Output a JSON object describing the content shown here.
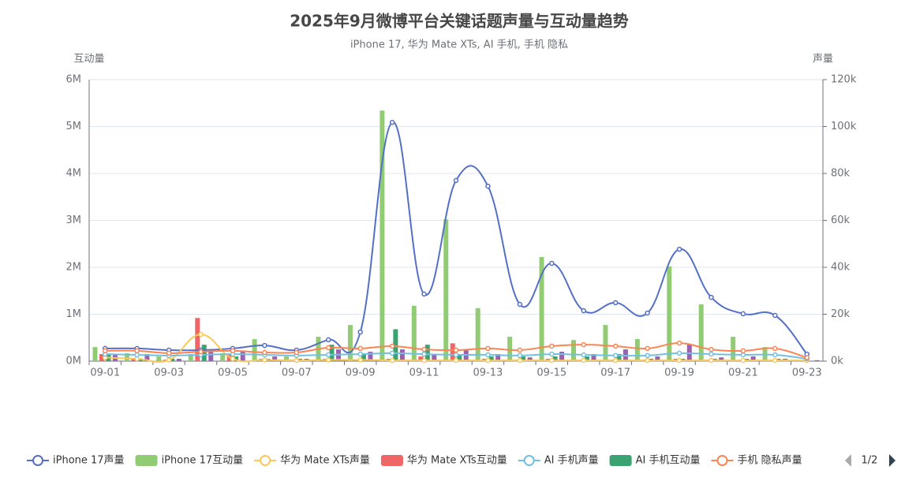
{
  "chart_data": {
    "type": "bar",
    "title": "2025年9月微博平台关键话题声量与互动量趋势",
    "subtitle": "iPhone 17, 华为 Mate XTs, AI 手机, 手机 隐私",
    "y_label": "互动量",
    "y2_label": "声量",
    "categories": [
      "09-01",
      null,
      "09-03",
      null,
      "09-05",
      null,
      "09-07",
      null,
      "09-09",
      null,
      "09-11",
      null,
      "09-13",
      null,
      "09-15",
      null,
      "09-17",
      null,
      "09-19",
      null,
      "09-21",
      null,
      "09-23"
    ],
    "ylim": [
      0,
      6000000
    ],
    "yticks": [
      0,
      {
        "value": 1000000,
        "label": "1M"
      },
      {
        "value": 2000000,
        "label": "2M"
      },
      {
        "value": 3000000,
        "label": "3M"
      },
      {
        "value": 4000000,
        "label": "4M"
      },
      {
        "value": 5000000,
        "label": "5M"
      },
      {
        "value": 6000000,
        "label": "6M"
      }
    ],
    "y0_label": "0M",
    "y2lim": [
      0,
      120000
    ],
    "y2ticks": [
      0,
      {
        "value": 20000,
        "label": "20k"
      },
      {
        "value": 40000,
        "label": "40k"
      },
      {
        "value": 60000,
        "label": "60k"
      },
      {
        "value": 80000,
        "label": "80k"
      },
      {
        "value": 100000,
        "label": "100k"
      },
      {
        "value": 120000,
        "label": "120k"
      }
    ],
    "y20_label": "0k",
    "grid": true,
    "legend_page": "1/2",
    "series": [
      {
        "name": "iPhone 17声量",
        "type": "line",
        "axis": "y2",
        "color": "#5470c6",
        "values": [
          5400,
          5400,
          4700,
          4700,
          5400,
          6700,
          4700,
          9100,
          12400,
          101800,
          28600,
          77000,
          74600,
          24200,
          41700,
          21500,
          24900,
          20500,
          47700,
          27200,
          20200,
          19500,
          3000
        ]
      },
      {
        "name": "iPhone 17互动量",
        "type": "bar",
        "color": "#91cc75",
        "values": [
          300000,
          170000,
          100000,
          150000,
          170000,
          470000,
          100000,
          520000,
          770000,
          5340000,
          1180000,
          3020000,
          1130000,
          520000,
          2220000,
          450000,
          770000,
          470000,
          2020000,
          1210000,
          520000,
          300000,
          30000
        ]
      },
      {
        "name": "华为 Mate XTs声量",
        "type": "line",
        "axis": "y2",
        "color": "#fac858",
        "values": [
          1500,
          1000,
          500,
          11400,
          1000,
          500,
          300,
          500,
          500,
          300,
          300,
          300,
          300,
          300,
          300,
          300,
          300,
          300,
          300,
          300,
          300,
          300,
          300
        ]
      },
      {
        "name": "华为 Mate XTs互动量",
        "type": "bar",
        "color": "#ee6666",
        "values": [
          150000,
          50000,
          30000,
          920000,
          150000,
          50000,
          30000,
          50000,
          30000,
          50000,
          100000,
          380000,
          50000,
          30000,
          50000,
          30000,
          30000,
          30000,
          50000,
          30000,
          30000,
          30000,
          10000
        ]
      },
      {
        "name": "AI 手机声量",
        "type": "line",
        "axis": "y2",
        "color": "#73c0de",
        "values": [
          3000,
          2700,
          2400,
          2700,
          3000,
          2700,
          2400,
          2700,
          3000,
          3400,
          3000,
          2700,
          2700,
          2400,
          3000,
          2700,
          2400,
          2400,
          3400,
          3000,
          2700,
          2700,
          1000
        ]
      },
      {
        "name": "AI 手机互动量",
        "type": "bar",
        "color": "#3ba272",
        "values": [
          150000,
          50000,
          50000,
          350000,
          100000,
          50000,
          50000,
          350000,
          150000,
          680000,
          350000,
          150000,
          100000,
          100000,
          100000,
          100000,
          150000,
          50000,
          50000,
          50000,
          50000,
          50000,
          10000
        ]
      },
      {
        "name": "手机 隐私声量",
        "type": "line",
        "axis": "y2",
        "color": "#fc8452",
        "values": [
          4400,
          4400,
          3400,
          4000,
          4400,
          3700,
          3700,
          5700,
          5400,
          6400,
          5000,
          4700,
          5400,
          4700,
          6400,
          7000,
          6400,
          5400,
          7700,
          5000,
          4400,
          5400,
          1500
        ]
      },
      {
        "type": "bar",
        "color": "#9a60b4",
        "values": [
          150000,
          150000,
          50000,
          200000,
          200000,
          100000,
          50000,
          250000,
          200000,
          250000,
          150000,
          250000,
          150000,
          80000,
          200000,
          150000,
          250000,
          100000,
          350000,
          80000,
          100000,
          50000,
          20000
        ]
      }
    ]
  }
}
